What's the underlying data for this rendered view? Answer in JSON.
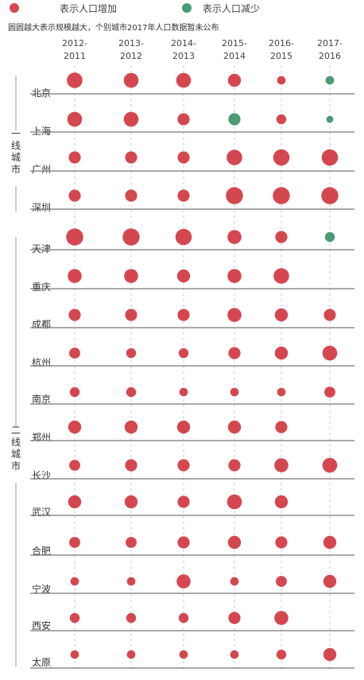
{
  "legend": {
    "increase": {
      "label": "表示人口增加",
      "color": "#d5474f"
    },
    "decrease": {
      "label": "表示人口减少",
      "color": "#4a9a73"
    }
  },
  "note": "圆圆越大表示规模越大，个别城市2017年人口数据暂未公布",
  "chart_data": {
    "type": "scatter",
    "periods": [
      {
        "top": "2012-",
        "bottom": "2011"
      },
      {
        "top": "2013-",
        "bottom": "2012"
      },
      {
        "top": "2014-",
        "bottom": "2013"
      },
      {
        "top": "2015-",
        "bottom": "2014"
      },
      {
        "top": "2016-",
        "bottom": "2015"
      },
      {
        "top": "2017-",
        "bottom": "2016"
      }
    ],
    "tiers": [
      {
        "label": "一线城市",
        "cities": [
          0,
          1,
          2,
          3
        ]
      },
      {
        "label": "二线城市",
        "cities": [
          4,
          5,
          6,
          7,
          8,
          9,
          10,
          11,
          12,
          13,
          14,
          15
        ]
      }
    ],
    "cities": [
      {
        "name": "北京",
        "values": [
          10,
          9,
          9,
          7,
          3,
          3
        ],
        "decrease": [
          false,
          false,
          false,
          false,
          false,
          true
        ]
      },
      {
        "name": "上海",
        "values": [
          9,
          9,
          6,
          6,
          4,
          2
        ],
        "decrease": [
          false,
          false,
          false,
          true,
          false,
          true
        ]
      },
      {
        "name": "广州",
        "values": [
          6,
          6,
          6,
          10,
          11,
          11
        ],
        "decrease": [
          false,
          false,
          false,
          false,
          false,
          false
        ]
      },
      {
        "name": "深圳",
        "values": [
          6,
          6,
          6,
          12,
          12,
          12
        ],
        "decrease": [
          false,
          false,
          false,
          false,
          false,
          false
        ]
      },
      {
        "name": "天津",
        "values": [
          12,
          12,
          11,
          8,
          6,
          4
        ],
        "decrease": [
          false,
          false,
          false,
          false,
          false,
          true
        ]
      },
      {
        "name": "重庆",
        "values": [
          8,
          8,
          7,
          8,
          10,
          null
        ],
        "decrease": [
          false,
          false,
          false,
          false,
          false,
          false
        ]
      },
      {
        "name": "成都",
        "values": [
          6,
          6,
          6,
          8,
          7,
          6
        ],
        "decrease": [
          false,
          false,
          false,
          false,
          false,
          false
        ]
      },
      {
        "name": "杭州",
        "values": [
          5,
          4,
          4,
          6,
          7,
          9
        ],
        "decrease": [
          false,
          false,
          false,
          false,
          false,
          false
        ]
      },
      {
        "name": "南京",
        "values": [
          4,
          4,
          3,
          3,
          3,
          5
        ],
        "decrease": [
          false,
          false,
          false,
          false,
          false,
          false
        ]
      },
      {
        "name": "郑州",
        "values": [
          7,
          7,
          7,
          7,
          6,
          null
        ],
        "decrease": [
          false,
          false,
          false,
          false,
          false,
          false
        ]
      },
      {
        "name": "长沙",
        "values": [
          5,
          6,
          6,
          6,
          8,
          9
        ],
        "decrease": [
          false,
          false,
          false,
          false,
          false,
          false
        ]
      },
      {
        "name": "武汉",
        "values": [
          7,
          7,
          6,
          9,
          7,
          null
        ],
        "decrease": [
          false,
          false,
          false,
          false,
          false,
          false
        ]
      },
      {
        "name": "合肥",
        "values": [
          5,
          5,
          6,
          7,
          6,
          7
        ],
        "decrease": [
          false,
          false,
          false,
          false,
          false,
          false
        ]
      },
      {
        "name": "宁波",
        "values": [
          3,
          3,
          8,
          3,
          5,
          7
        ],
        "decrease": [
          false,
          false,
          false,
          false,
          false,
          false
        ]
      },
      {
        "name": "西安",
        "values": [
          4,
          4,
          4,
          6,
          8,
          null
        ],
        "decrease": [
          false,
          false,
          false,
          false,
          false,
          false
        ]
      },
      {
        "name": "太原",
        "values": [
          3,
          3,
          3,
          3,
          4,
          7
        ],
        "decrease": [
          false,
          false,
          false,
          false,
          false,
          false
        ]
      }
    ]
  }
}
